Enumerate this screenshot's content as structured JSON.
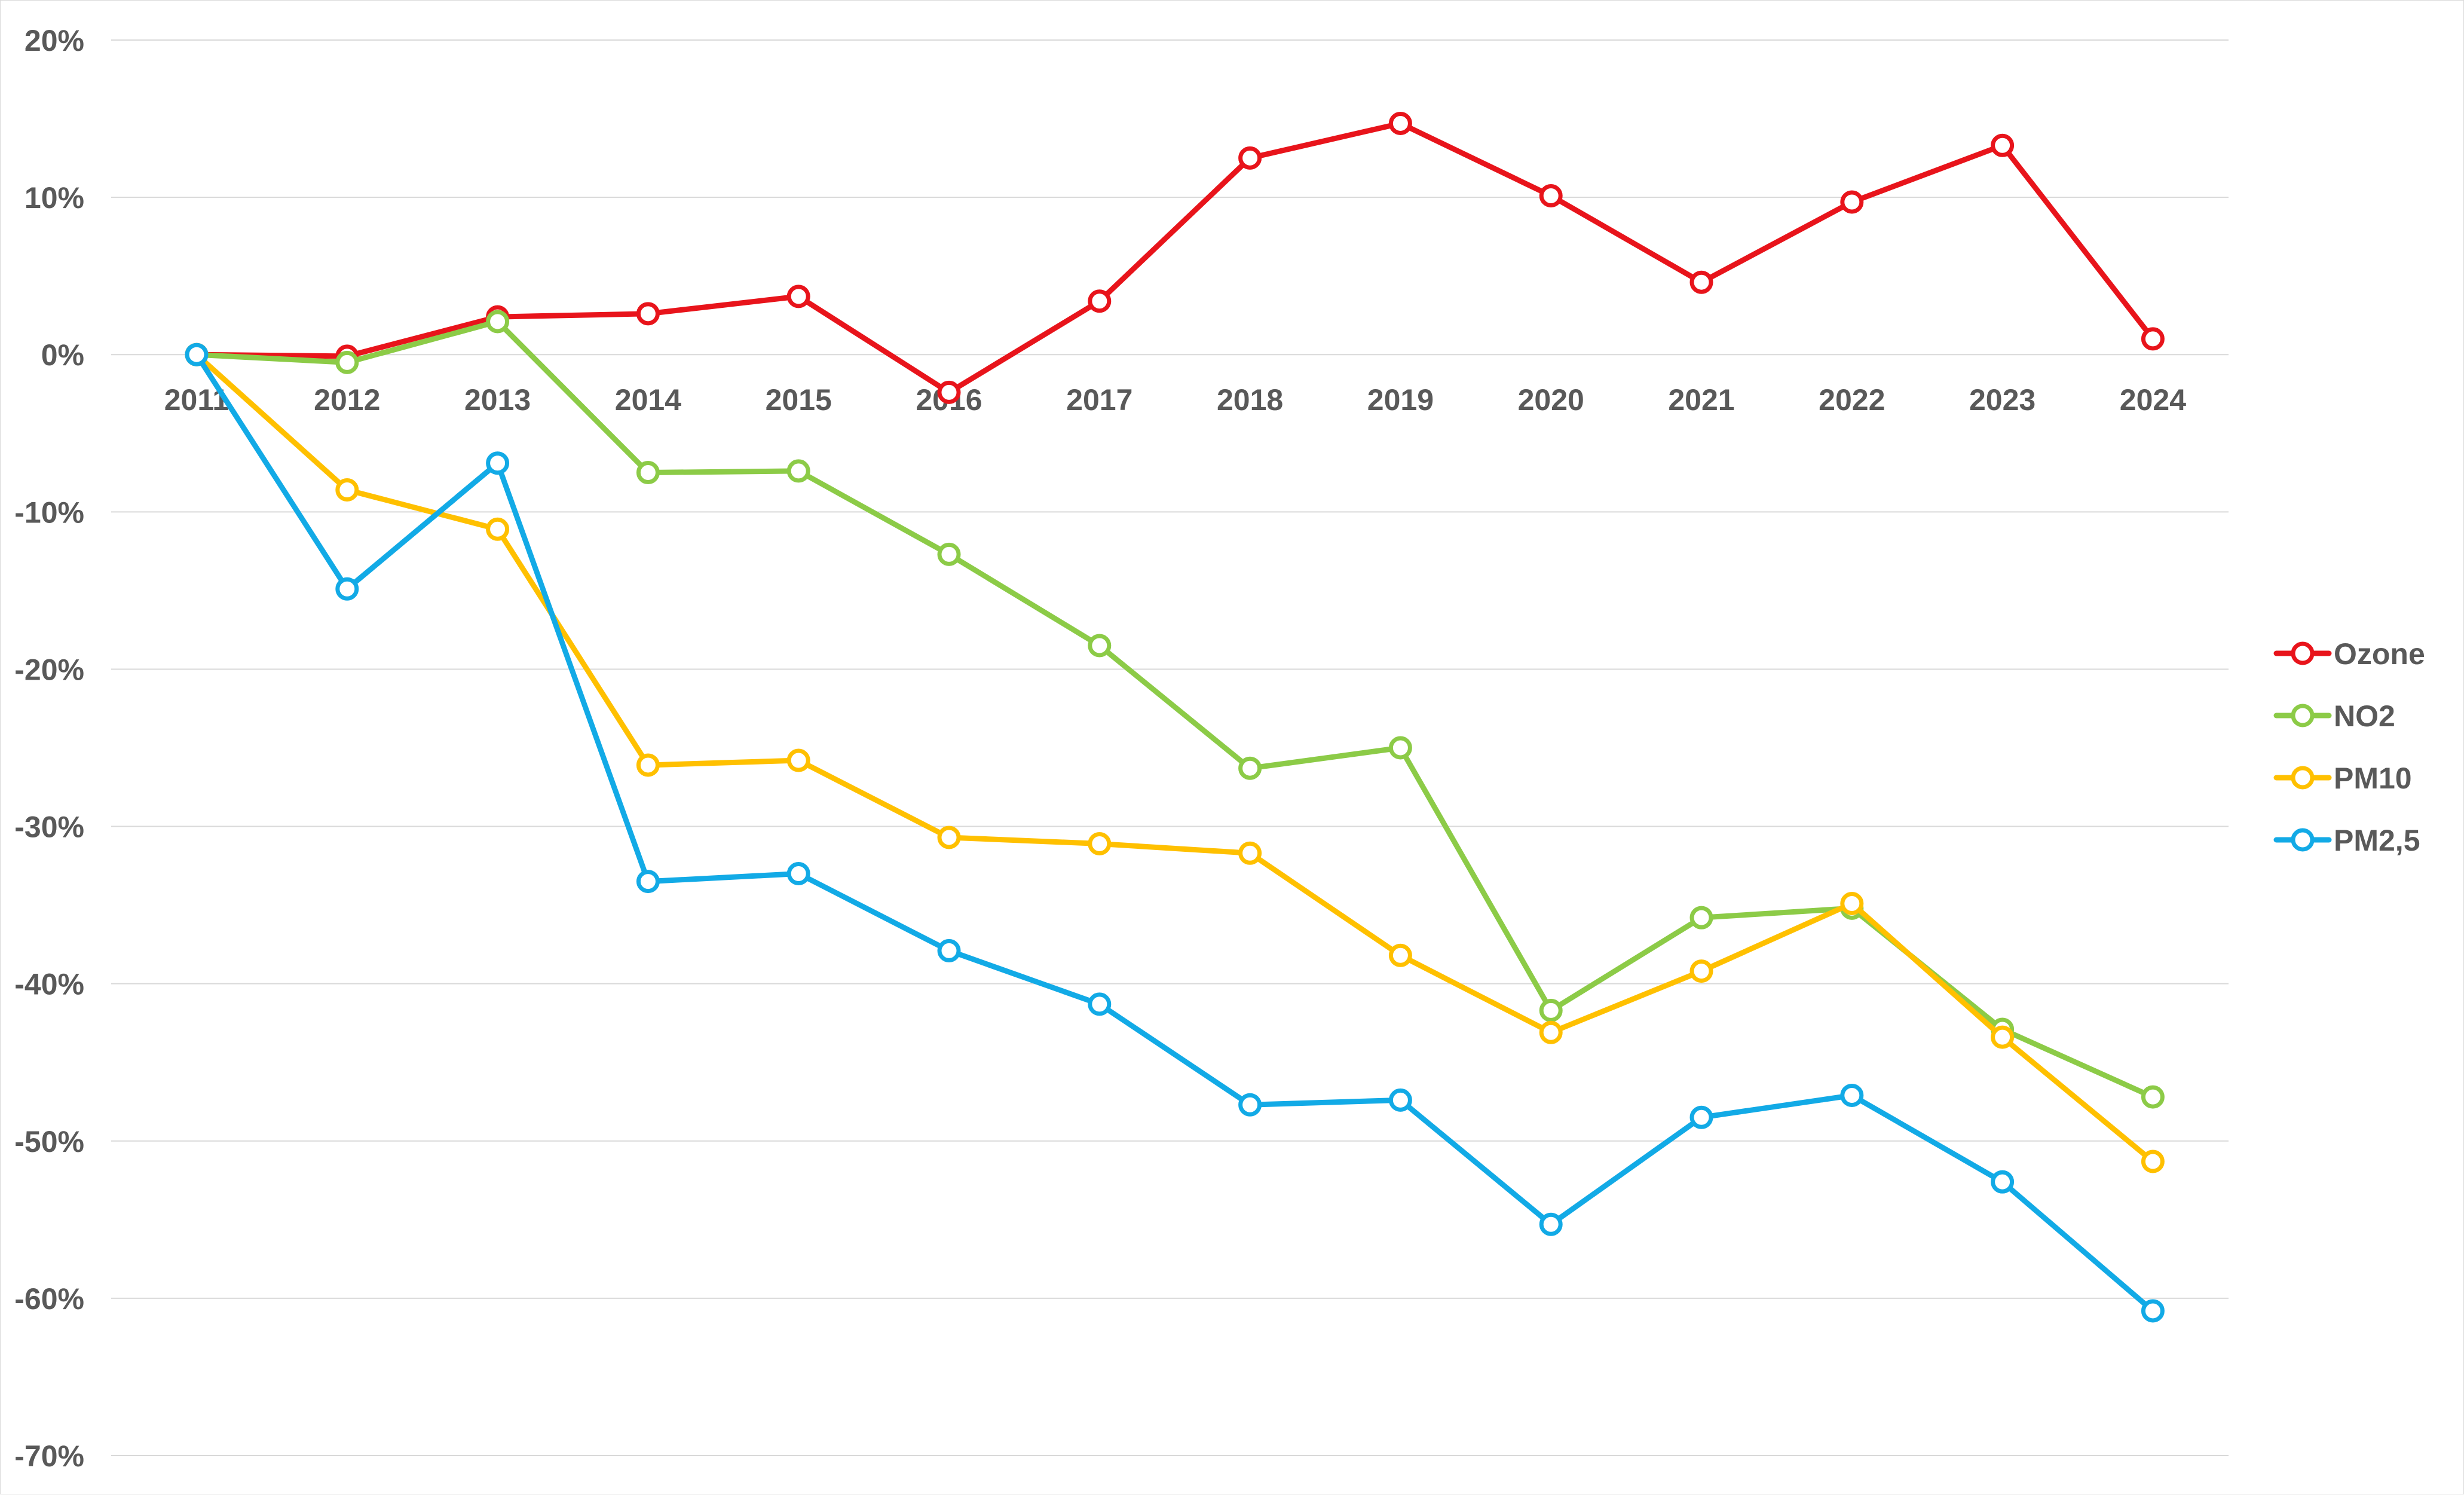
{
  "chart_data": {
    "type": "line",
    "title": "",
    "xlabel": "",
    "ylabel": "",
    "categories": [
      "2011",
      "2012",
      "2013",
      "2014",
      "2015",
      "2016",
      "2017",
      "2018",
      "2019",
      "2020",
      "2021",
      "2022",
      "2023",
      "2024"
    ],
    "ylim": [
      -70,
      20
    ],
    "y_ticks": [
      20,
      10,
      0,
      -10,
      -20,
      -30,
      -40,
      -50,
      -60,
      -70
    ],
    "y_tick_format": "percent",
    "grid": true,
    "legend_position": "right",
    "series": [
      {
        "name": "Ozone",
        "color": "#e8141b",
        "values": [
          0,
          -0.1,
          2.4,
          2.6,
          3.7,
          -2.4,
          3.4,
          12.5,
          14.7,
          10.1,
          4.6,
          9.7,
          13.3,
          1.0
        ]
      },
      {
        "name": "NO2",
        "color": "#8ccb47",
        "values": [
          0,
          -0.5,
          2.1,
          -7.5,
          -7.4,
          -12.7,
          -18.5,
          -26.3,
          -25.0,
          -41.7,
          -35.8,
          -35.2,
          -42.9,
          -47.2
        ]
      },
      {
        "name": "PM10",
        "color": "#ffc000",
        "values": [
          0,
          -8.6,
          -11.1,
          -26.1,
          -25.8,
          -30.7,
          -31.1,
          -31.7,
          -38.2,
          -43.1,
          -39.2,
          -34.9,
          -43.4,
          -51.3
        ]
      },
      {
        "name": "PM2,5",
        "color": "#12aae6",
        "values": [
          0,
          -14.9,
          -6.9,
          -33.5,
          -33.0,
          -37.9,
          -41.3,
          -47.7,
          -47.4,
          -55.3,
          -48.5,
          -47.1,
          -52.6,
          -60.8
        ]
      }
    ]
  }
}
